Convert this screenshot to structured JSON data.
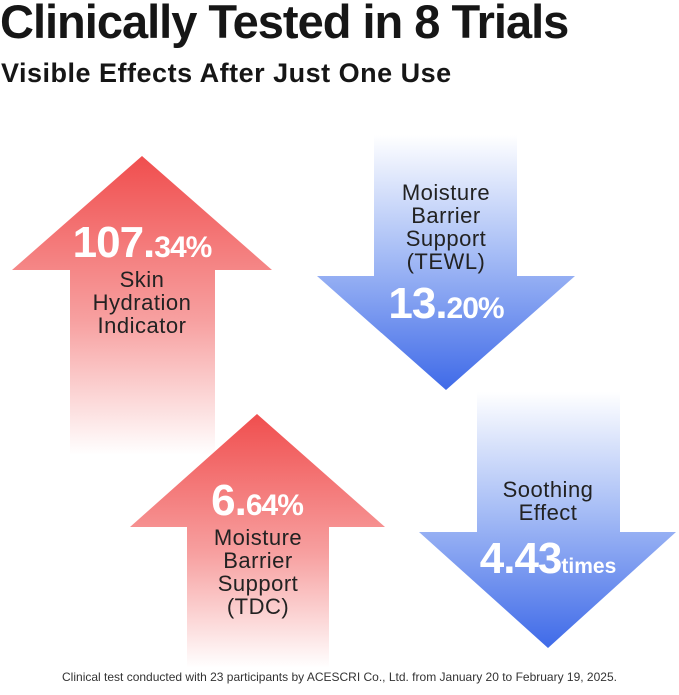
{
  "header": {
    "title": "Clinically Tested in 8 Trials",
    "subtitle": "Visible Effects After Just One Use"
  },
  "results": [
    {
      "direction": "up",
      "value_int": "107.",
      "value_dec": "34",
      "unit": "%",
      "label": "Skin Hydration Indicator"
    },
    {
      "direction": "down",
      "value_int": "13.",
      "value_dec": "20",
      "unit": "%",
      "label": "Moisture Barrier Support (TEWL)"
    },
    {
      "direction": "up",
      "value_int": "6.",
      "value_dec": "64",
      "unit": "%",
      "label": "Moisture Barrier Support (TDC)"
    },
    {
      "direction": "down",
      "value_int": "4.43",
      "value_dec": "",
      "unit": "times",
      "label": "Soothing Effect"
    }
  ],
  "colors": {
    "up_arrow": "#f04e4e",
    "down_arrow": "#4a73ea"
  },
  "footnote": "Clinical test conducted with 23 participants by ACESCRI Co., Ltd. from January 20 to February 19, 2025."
}
